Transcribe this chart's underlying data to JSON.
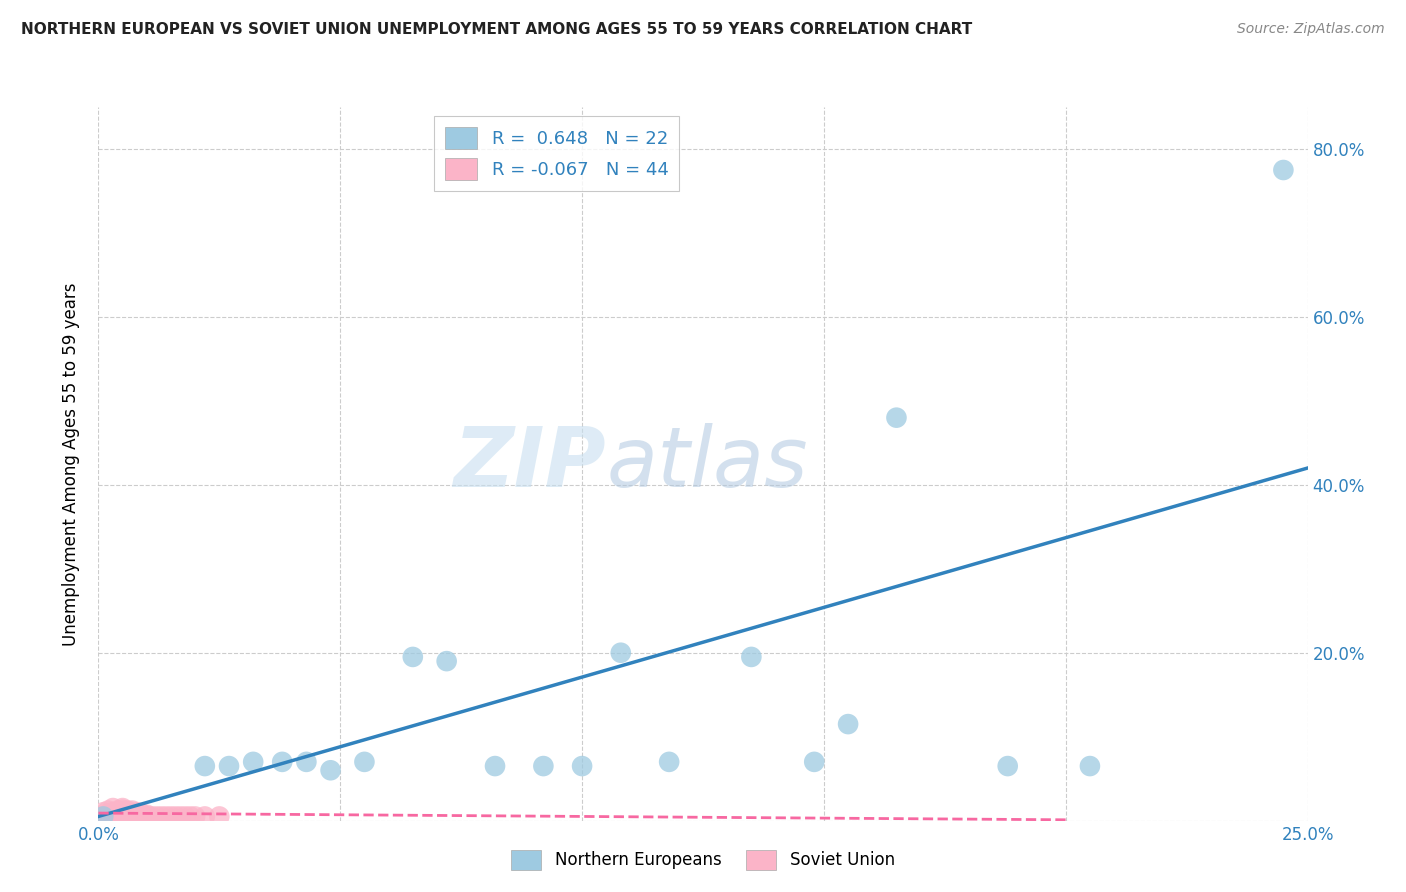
{
  "title": "NORTHERN EUROPEAN VS SOVIET UNION UNEMPLOYMENT AMONG AGES 55 TO 59 YEARS CORRELATION CHART",
  "source": "Source: ZipAtlas.com",
  "ylabel_label": "Unemployment Among Ages 55 to 59 years",
  "xlim": [
    0.0,
    0.25
  ],
  "ylim": [
    0.0,
    0.85
  ],
  "xticks": [
    0.0,
    0.05,
    0.1,
    0.15,
    0.2,
    0.25
  ],
  "yticks": [
    0.0,
    0.2,
    0.4,
    0.6,
    0.8
  ],
  "xtick_labels": [
    "0.0%",
    "",
    "",
    "",
    "",
    "25.0%"
  ],
  "ytick_labels_right": [
    "",
    "20.0%",
    "40.0%",
    "60.0%",
    "80.0%"
  ],
  "background_color": "#ffffff",
  "grid_color": "#cccccc",
  "watermark_zip": "ZIP",
  "watermark_atlas": "atlas",
  "blue_color": "#9ecae1",
  "pink_color": "#fbb4c8",
  "blue_line_color": "#3182bd",
  "pink_line_color": "#f768a1",
  "tick_label_color": "#3182bd",
  "R_blue": 0.648,
  "N_blue": 22,
  "R_pink": -0.067,
  "N_pink": 44,
  "blue_scatter_x": [
    0.001,
    0.022,
    0.027,
    0.032,
    0.038,
    0.043,
    0.048,
    0.055,
    0.065,
    0.072,
    0.082,
    0.092,
    0.1,
    0.108,
    0.118,
    0.135,
    0.148,
    0.155,
    0.165,
    0.188,
    0.205,
    0.245
  ],
  "blue_scatter_y": [
    0.005,
    0.065,
    0.065,
    0.07,
    0.07,
    0.07,
    0.06,
    0.07,
    0.195,
    0.19,
    0.065,
    0.065,
    0.065,
    0.2,
    0.07,
    0.195,
    0.07,
    0.115,
    0.48,
    0.065,
    0.065,
    0.775
  ],
  "pink_scatter_x": [
    0.001,
    0.001,
    0.002,
    0.002,
    0.002,
    0.003,
    0.003,
    0.003,
    0.003,
    0.004,
    0.004,
    0.004,
    0.005,
    0.005,
    0.005,
    0.005,
    0.005,
    0.006,
    0.006,
    0.006,
    0.006,
    0.007,
    0.007,
    0.007,
    0.007,
    0.008,
    0.008,
    0.008,
    0.009,
    0.009,
    0.01,
    0.01,
    0.011,
    0.012,
    0.013,
    0.014,
    0.015,
    0.016,
    0.017,
    0.018,
    0.019,
    0.02,
    0.022,
    0.025
  ],
  "pink_scatter_y": [
    0.005,
    0.01,
    0.005,
    0.008,
    0.012,
    0.005,
    0.008,
    0.01,
    0.015,
    0.005,
    0.008,
    0.012,
    0.005,
    0.007,
    0.01,
    0.013,
    0.015,
    0.005,
    0.008,
    0.01,
    0.012,
    0.005,
    0.007,
    0.009,
    0.012,
    0.005,
    0.008,
    0.01,
    0.005,
    0.008,
    0.005,
    0.007,
    0.005,
    0.005,
    0.005,
    0.005,
    0.005,
    0.005,
    0.005,
    0.005,
    0.005,
    0.005,
    0.005,
    0.005
  ],
  "blue_trend_x": [
    0.0,
    0.25
  ],
  "blue_trend_y": [
    0.005,
    0.42
  ],
  "pink_trend_x": [
    0.0,
    0.2
  ],
  "pink_trend_y": [
    0.009,
    0.001
  ]
}
